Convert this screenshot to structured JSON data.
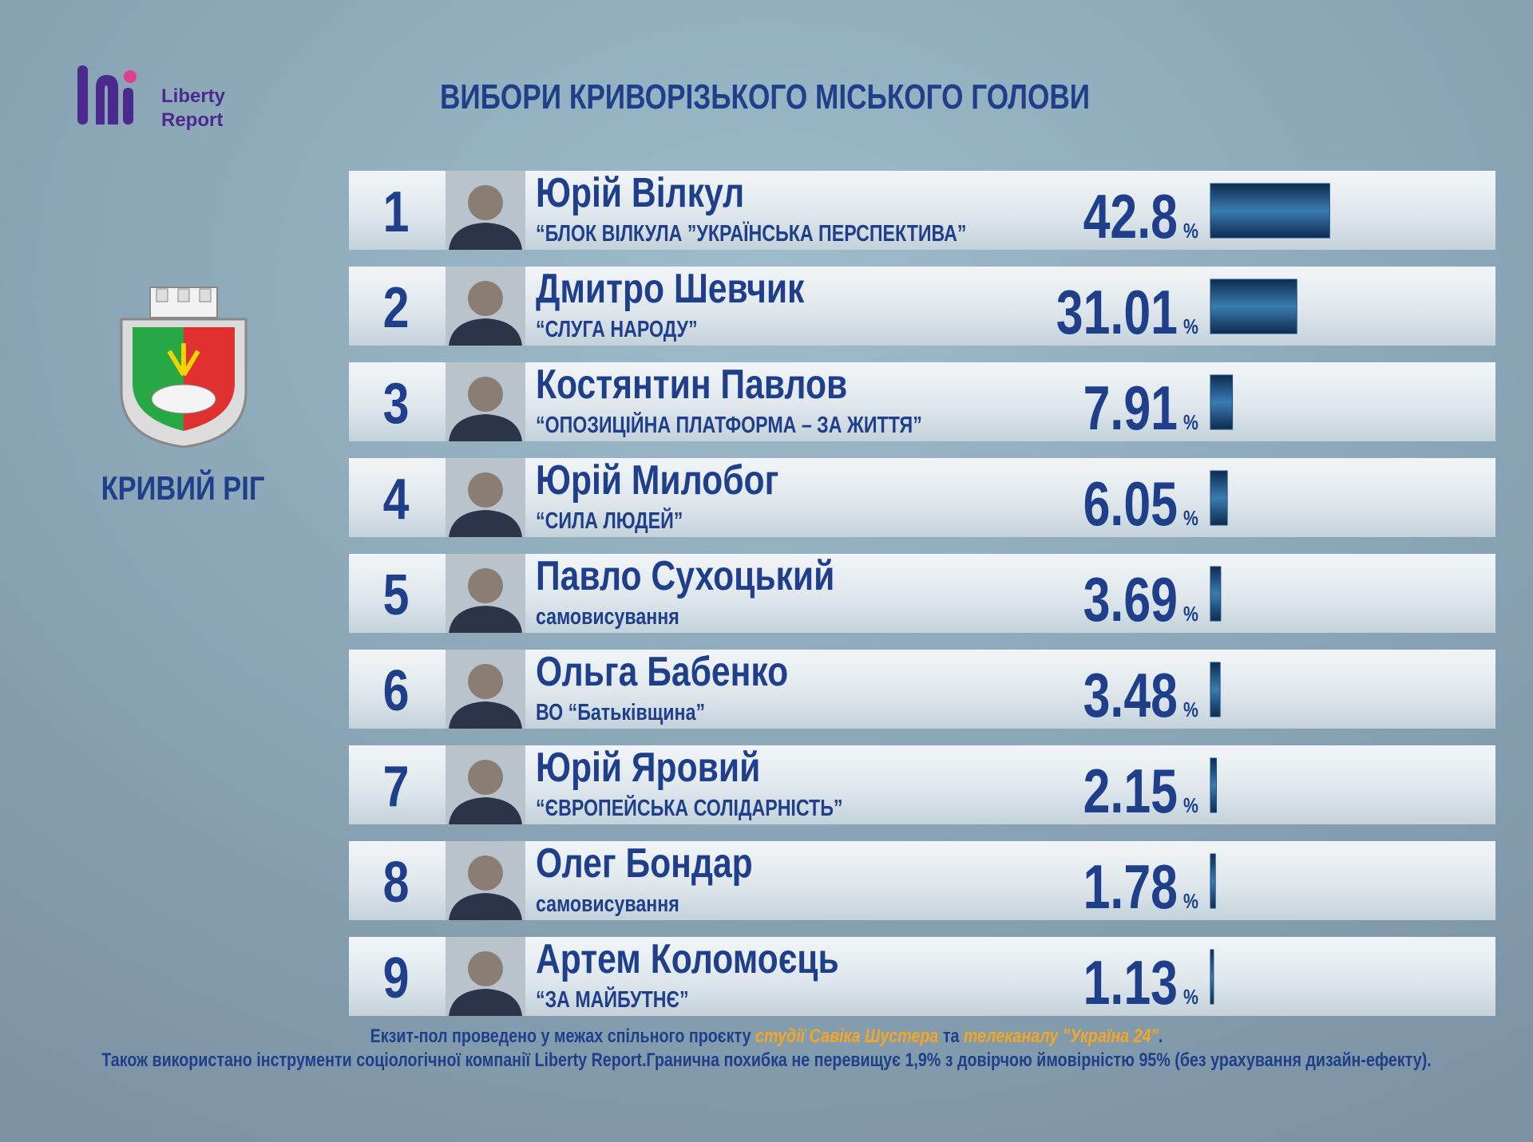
{
  "header": {
    "logo_text": [
      "Liberty",
      "Report"
    ],
    "title": "ВИБОРИ КРИВОРІЗЬКОГО МІСЬКОГО ГОЛОВИ"
  },
  "city": "КРИВИЙ РІГ",
  "chart_data": {
    "type": "bar",
    "orientation": "horizontal",
    "ranks": [
      1,
      2,
      3,
      4,
      5,
      6,
      7,
      8,
      9
    ],
    "categories": [
      "Юрій Вілкул",
      "Дмитро Шевчик",
      "Костянтин Павлов",
      "Юрій Милобог",
      "Павло Сухоцький",
      "Ольга Бабенко",
      "Юрій Яровий",
      "Олег Бондар",
      "Артем Коломоєць"
    ],
    "parties": [
      "“БЛОК ВІЛКУЛА ”УКРАЇНСЬКА ПЕРСПЕКТИВА”",
      "“СЛУГА НАРОДУ”",
      "“ОПОЗИЦІЙНА ПЛАТФОРМА – ЗА ЖИТТЯ”",
      "“СИЛА ЛЮДЕЙ”",
      "самовисування",
      "ВО “Батьківщина”",
      "“ЄВРОПЕЙСЬКА СОЛІДАРНІСТЬ”",
      "самовисування",
      "“ЗА МАЙБУТНЄ”"
    ],
    "values": [
      42.8,
      31.01,
      7.91,
      6.05,
      3.69,
      3.48,
      2.15,
      1.78,
      1.13
    ],
    "unit": "%",
    "color": "#1b4f82"
  },
  "footer": {
    "line1": [
      {
        "text": "Екзит-пол проведено у межах спільного проєкту ",
        "highlight": false
      },
      {
        "text": "студії Савіка Шустера",
        "highlight": true
      },
      {
        "text": " та ",
        "highlight": false
      },
      {
        "text": "телеканалу \"Україна 24\"",
        "highlight": true
      },
      {
        "text": ".",
        "highlight": false
      }
    ],
    "line2": "Також використано інструменти соціологічної компанії Liberty Report.Гранична похибка не перевищує 1,9% з довірчою ймовірністю 95% (без урахування дизайн-ефекту)."
  }
}
